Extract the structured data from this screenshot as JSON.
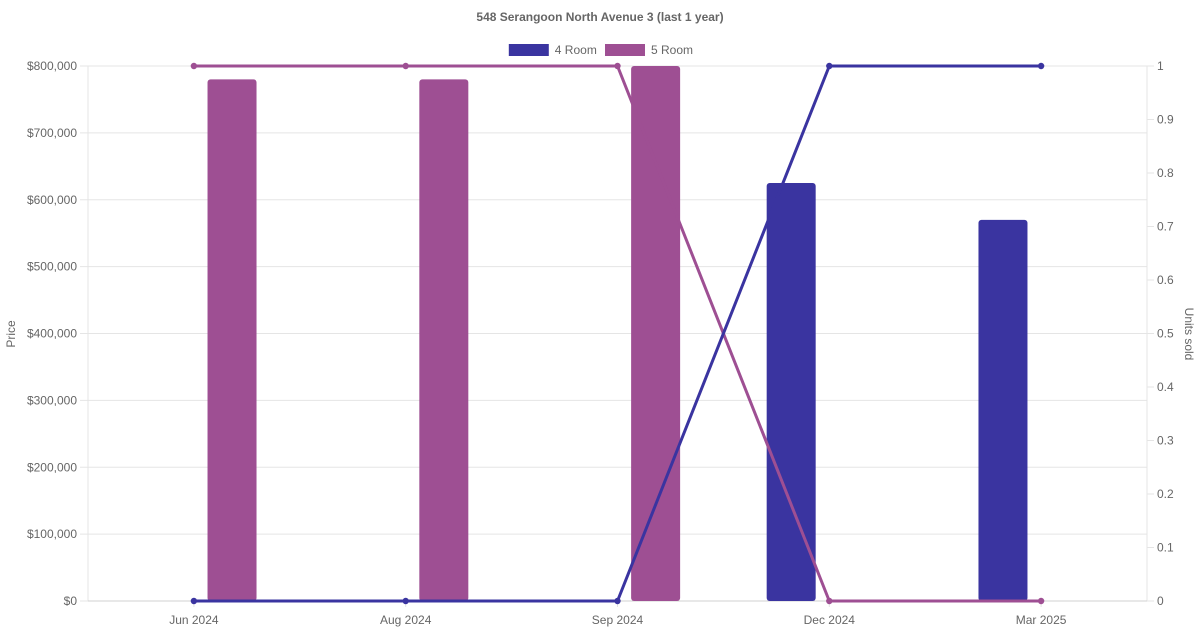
{
  "chart_data": {
    "type": "bar",
    "title": "548 Serangoon North Avenue 3 (last 1 year)",
    "categories": [
      "Jun 2024",
      "Aug 2024",
      "Sep 2024",
      "Dec 2024",
      "Mar 2025"
    ],
    "y_left": {
      "label": "Price",
      "range": [
        0,
        800000
      ],
      "ticks": [
        "$0",
        "$100,000",
        "$200,000",
        "$300,000",
        "$400,000",
        "$500,000",
        "$600,000",
        "$700,000",
        "$800,000"
      ]
    },
    "y_right": {
      "label": "Units sold",
      "range": [
        0,
        1
      ],
      "ticks": [
        "0",
        "0.1",
        "0.2",
        "0.3",
        "0.4",
        "0.5",
        "0.6",
        "0.7",
        "0.8",
        "0.9",
        "1"
      ]
    },
    "legend": {
      "placement": "top"
    },
    "grid": true,
    "series": [
      {
        "name": "4 Room",
        "color": "#3a34a0",
        "price": [
          null,
          null,
          null,
          625000,
          570000
        ],
        "units_sold": [
          0,
          0,
          0,
          1,
          1
        ]
      },
      {
        "name": "5 Room",
        "color": "#9e4f93",
        "price": [
          780000,
          780000,
          800000,
          null,
          null
        ],
        "units_sold": [
          1,
          1,
          1,
          0,
          0
        ]
      }
    ]
  }
}
